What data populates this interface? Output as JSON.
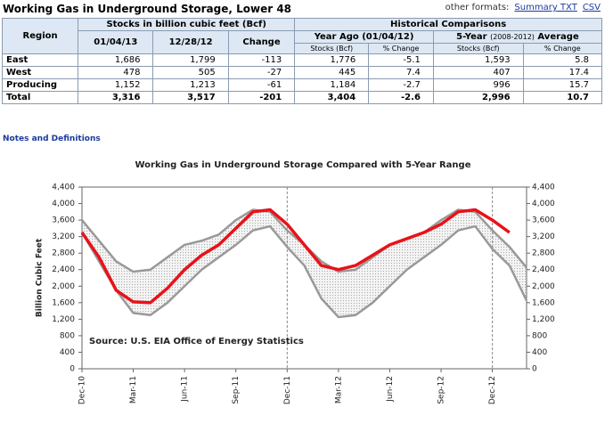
{
  "header": {
    "title": "Working Gas in Underground Storage, Lower 48",
    "other_formats": "other formats:",
    "links": [
      "Summary TXT",
      "CSV"
    ]
  },
  "table": {
    "group_headers": [
      "Stocks in billion cubic feet (Bcf)",
      "Historical Comparisons"
    ],
    "region_header": "Region",
    "col_headers": [
      "01/04/13",
      "12/28/12",
      "Change"
    ],
    "year_ago": "Year Ago (01/04/12)",
    "five_year": [
      "5-Year",
      "(2008-2012)",
      "Average"
    ],
    "sub_headers": [
      "Stocks (Bcf)",
      "% Change",
      "Stocks (Bcf)",
      "% Change"
    ],
    "rows": [
      [
        "East",
        "1,686",
        "1,799",
        "-113",
        "1,776",
        "-5.1",
        "1,593",
        "5.8"
      ],
      [
        "West",
        "478",
        "505",
        "-27",
        "445",
        "7.4",
        "407",
        "17.4"
      ],
      [
        "Producing",
        "1,152",
        "1,213",
        "-61",
        "1,184",
        "-2.7",
        "996",
        "15.7"
      ],
      [
        "Total",
        "3,316",
        "3,517",
        "-201",
        "3,404",
        "-2.6",
        "2,996",
        "10.7"
      ]
    ]
  },
  "notes": "Notes and Definitions",
  "chart_data": {
    "type": "line",
    "title": "Working Gas in Underground Storage Compared with 5-Year Range",
    "y_label": "Billion Cubic Feet",
    "annotation": "Source:  U.S. EIA Office of Energy Statistics",
    "categories": [
      "Dec-10",
      null,
      null,
      "Mar-11",
      null,
      null,
      "Jun-11",
      null,
      null,
      "Sep-11",
      null,
      null,
      "Dec-11",
      null,
      null,
      "Mar-12",
      null,
      null,
      "Jun-12",
      null,
      null,
      "Sep-12",
      null,
      null,
      "Dec-12",
      null,
      null
    ],
    "series": [
      {
        "color": "#999999",
        "values": [
          3600,
          3100,
          2600,
          2350,
          2400,
          2700,
          3000,
          3100,
          3250,
          3600,
          3850,
          3800,
          3350,
          3000,
          2600,
          2350,
          2400,
          2700,
          3000,
          3150,
          3300,
          3600,
          3850,
          3800,
          3350,
          2950,
          2450
        ]
      },
      {
        "color": "#999999",
        "values": [
          3300,
          2600,
          1900,
          1350,
          1300,
          1600,
          2000,
          2400,
          2700,
          3000,
          3350,
          3450,
          2950,
          2500,
          1700,
          1250,
          1300,
          1600,
          2000,
          2400,
          2700,
          3000,
          3350,
          3450,
          2900,
          2500,
          1650
        ]
      },
      {
        "color": "#e8121a",
        "values": [
          3300,
          2700,
          1900,
          1620,
          1600,
          1950,
          2400,
          2750,
          3000,
          3400,
          3800,
          3850,
          3500,
          3000,
          2500,
          2400,
          2500,
          2750,
          3000,
          3150,
          3300,
          3500,
          3800,
          3850,
          3600,
          3300,
          null
        ]
      }
    ],
    "ylim": [
      0,
      4400
    ],
    "yticks": [
      0,
      400,
      800,
      {
        "value": 1200,
        "label": "1,200"
      },
      {
        "value": 1600,
        "label": "1,600"
      },
      {
        "value": 2000,
        "label": "2,000"
      },
      {
        "value": 2400,
        "label": "2,400"
      },
      {
        "value": 2800,
        "label": "2,800"
      },
      {
        "value": 3200,
        "label": "3,200"
      },
      {
        "value": 3600,
        "label": "3,600"
      },
      {
        "value": 4000,
        "label": "4,000"
      },
      {
        "value": 4400,
        "label": "4,400"
      }
    ],
    "y2lim": [
      0,
      4400
    ],
    "y2ticks": [
      0,
      400,
      800,
      {
        "value": 1200,
        "label": "1,200"
      },
      {
        "value": 1600,
        "label": "1,600"
      },
      {
        "value": 2000,
        "label": "2,000"
      },
      {
        "value": 2400,
        "label": "2,400"
      },
      {
        "value": 2800,
        "label": "2,800"
      },
      {
        "value": 3200,
        "label": "3,200"
      },
      {
        "value": 3600,
        "label": "3,600"
      },
      {
        "value": 4000,
        "label": "4,000"
      },
      {
        "value": 4400,
        "label": "4,400"
      }
    ]
  }
}
